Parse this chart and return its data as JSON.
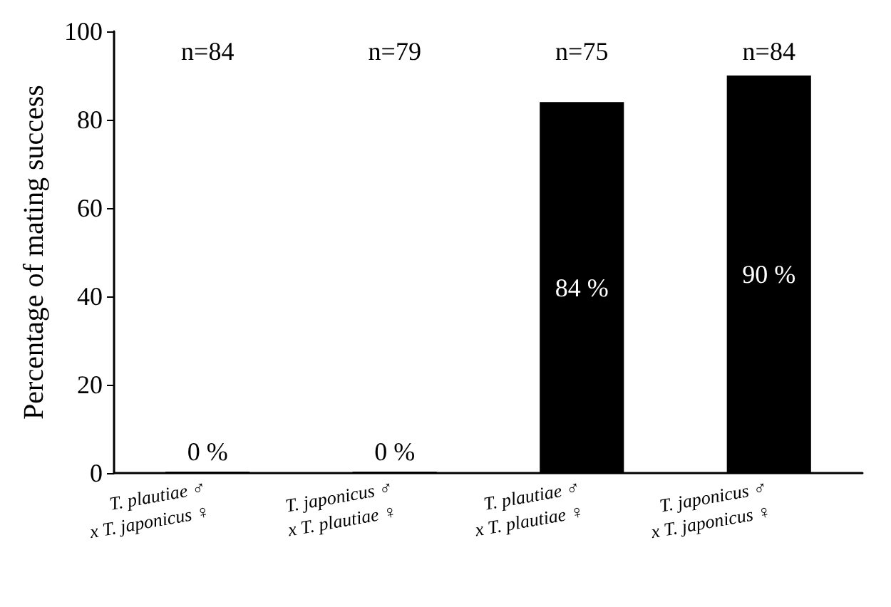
{
  "chart_data": {
    "type": "bar",
    "ylabel": "Percentage of mating success",
    "categories": [
      "T. plautiae ♂\nx T. japonicus ♀",
      "T. japonicus ♂\nx T. plautiae ♀",
      "T. plautiae ♂\nx T. plautiae ♀",
      "T. japonicus ♂\nx T. japonicus ♀"
    ],
    "values": [
      0,
      0,
      84,
      90
    ],
    "color": "#000000",
    "value_labels": [
      "0 %",
      "0 %",
      "84 %",
      "90 %"
    ],
    "ylim": [
      0,
      100
    ],
    "yticks": [
      0,
      20,
      40,
      60,
      80,
      100
    ],
    "grid": false,
    "annotations": [
      "n=84",
      "n=79",
      "n=75",
      "n=84"
    ]
  }
}
